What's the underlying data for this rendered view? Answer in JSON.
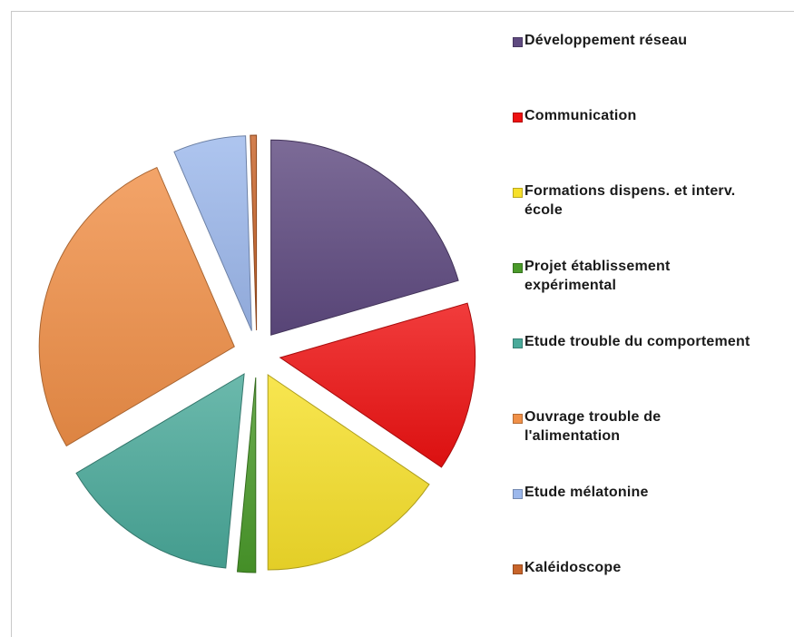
{
  "chart_data": {
    "type": "pie",
    "exploded": true,
    "legend_position": "right",
    "slices": [
      {
        "label": "Développement réseau",
        "value": 20.5,
        "color": "#5f4a80"
      },
      {
        "label": "Communication",
        "value": 14.0,
        "color": "#ee1111"
      },
      {
        "label": "Formations dispens. et interv. école",
        "value": 15.5,
        "color": "#f7e02a"
      },
      {
        "label": "Projet établissement expérimental",
        "value": 1.5,
        "color": "#4a9a2a"
      },
      {
        "label": "Etude trouble du comportement",
        "value": 15.0,
        "color": "#4aaa9a"
      },
      {
        "label": "Ouvrage trouble de l'alimentation",
        "value": 27.0,
        "color": "#f09048"
      },
      {
        "label": "Etude mélatonine",
        "value": 6.0,
        "color": "#9cb8ec"
      },
      {
        "label": "Kaléidoscope",
        "value": 0.5,
        "color": "#c8642a"
      }
    ]
  }
}
